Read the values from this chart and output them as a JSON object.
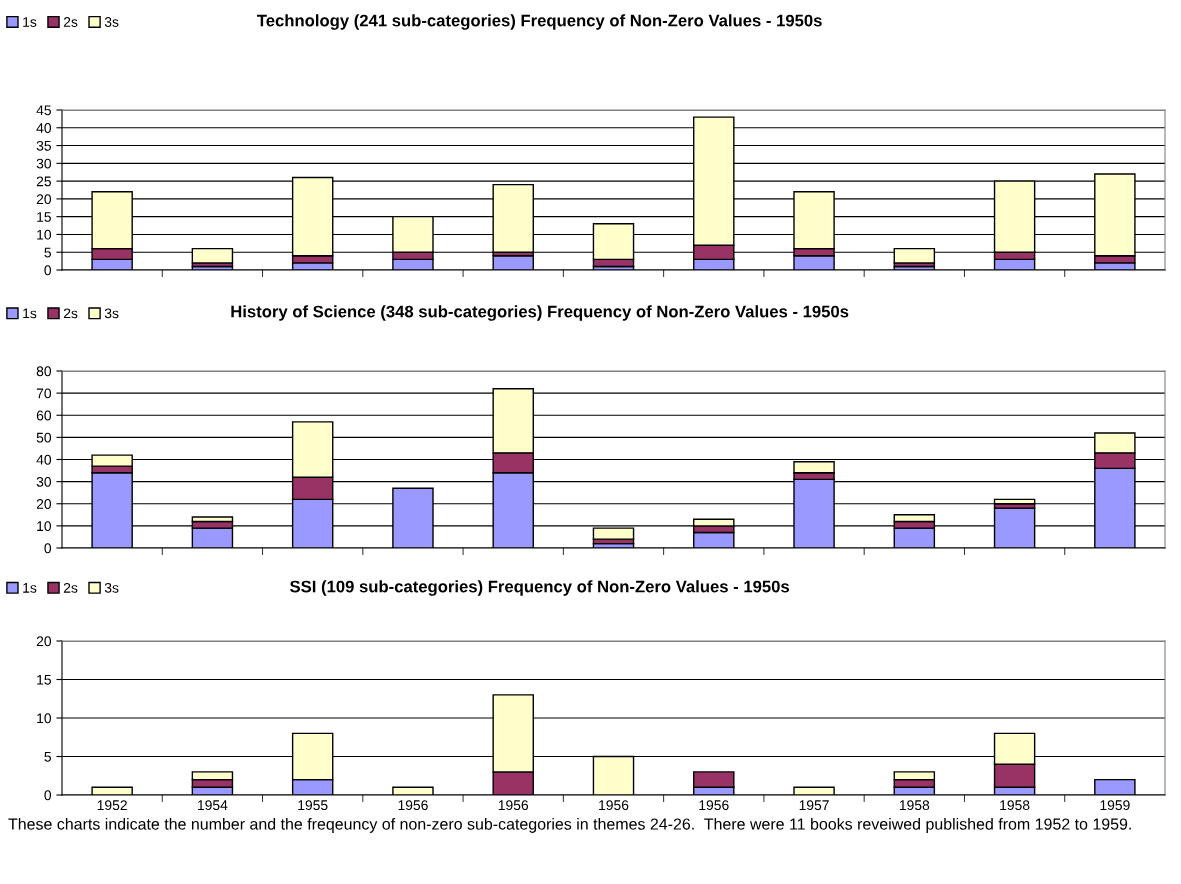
{
  "chart_data": [
    {
      "type": "bar",
      "stacked": true,
      "title": "Technology (241 sub-categories) Frequency of Non-Zero Values - 1950s",
      "categories": [
        "1952",
        "1954",
        "1955",
        "1956",
        "1956",
        "1956",
        "1956",
        "1957",
        "1958",
        "1958",
        "1959"
      ],
      "tick_labels": "y",
      "ylim": [
        0,
        45
      ],
      "yticks": [
        0,
        5,
        10,
        15,
        20,
        25,
        30,
        35,
        40,
        45
      ],
      "grid": "y",
      "legend": "top left",
      "series": [
        {
          "name": "1s",
          "color": "#9999ff",
          "values": [
            3,
            1,
            2,
            3,
            4,
            1,
            3,
            4,
            1,
            3,
            2
          ]
        },
        {
          "name": "2s",
          "color": "#993366",
          "values": [
            3,
            1,
            2,
            2,
            1,
            2,
            4,
            2,
            1,
            2,
            2
          ]
        },
        {
          "name": "3s",
          "color": "#ffffcc",
          "values": [
            16,
            4,
            22,
            10,
            19,
            10,
            36,
            16,
            4,
            20,
            23
          ]
        }
      ]
    },
    {
      "type": "bar",
      "stacked": true,
      "title": "History of Science (348 sub-categories) Frequency of Non-Zero Values - 1950s",
      "categories": [
        "1952",
        "1954",
        "1955",
        "1956",
        "1956",
        "1956",
        "1956",
        "1957",
        "1958",
        "1958",
        "1959"
      ],
      "tick_labels": "y",
      "ylim": [
        0,
        80
      ],
      "yticks": [
        0,
        10,
        20,
        30,
        40,
        50,
        60,
        70,
        80
      ],
      "grid": "y",
      "legend": "top left",
      "series": [
        {
          "name": "1s",
          "color": "#9999ff",
          "values": [
            34,
            9,
            22,
            27,
            34,
            2,
            7,
            31,
            9,
            18,
            36
          ]
        },
        {
          "name": "2s",
          "color": "#993366",
          "values": [
            3,
            3,
            10,
            0,
            9,
            2,
            3,
            3,
            3,
            2,
            7
          ]
        },
        {
          "name": "3s",
          "color": "#ffffcc",
          "values": [
            5,
            2,
            25,
            0,
            29,
            5,
            3,
            5,
            3,
            2,
            9
          ]
        }
      ]
    },
    {
      "type": "bar",
      "stacked": true,
      "title": "SSI (109 sub-categories) Frequency of Non-Zero Values - 1950s",
      "categories": [
        "1952",
        "1954",
        "1955",
        "1956",
        "1956",
        "1956",
        "1956",
        "1957",
        "1958",
        "1958",
        "1959"
      ],
      "ylim": [
        0,
        20
      ],
      "yticks": [
        0,
        5,
        10,
        15,
        20
      ],
      "grid": "y",
      "legend": "top left",
      "annotations": [
        "These charts indicate the number and the freqeuncy of non-zero sub-categories in themes 24-26.  There were 11 books reveiwed published from 1952 to 1959."
      ],
      "series": [
        {
          "name": "1s",
          "color": "#9999ff",
          "values": [
            0,
            1,
            2,
            0,
            0,
            0,
            1,
            0,
            1,
            1,
            2
          ]
        },
        {
          "name": "2s",
          "color": "#993366",
          "values": [
            0,
            1,
            0,
            0,
            3,
            0,
            2,
            0,
            1,
            3,
            0
          ]
        },
        {
          "name": "3s",
          "color": "#ffffcc",
          "values": [
            1,
            1,
            6,
            1,
            10,
            5,
            0,
            1,
            1,
            4,
            0
          ]
        }
      ]
    }
  ]
}
